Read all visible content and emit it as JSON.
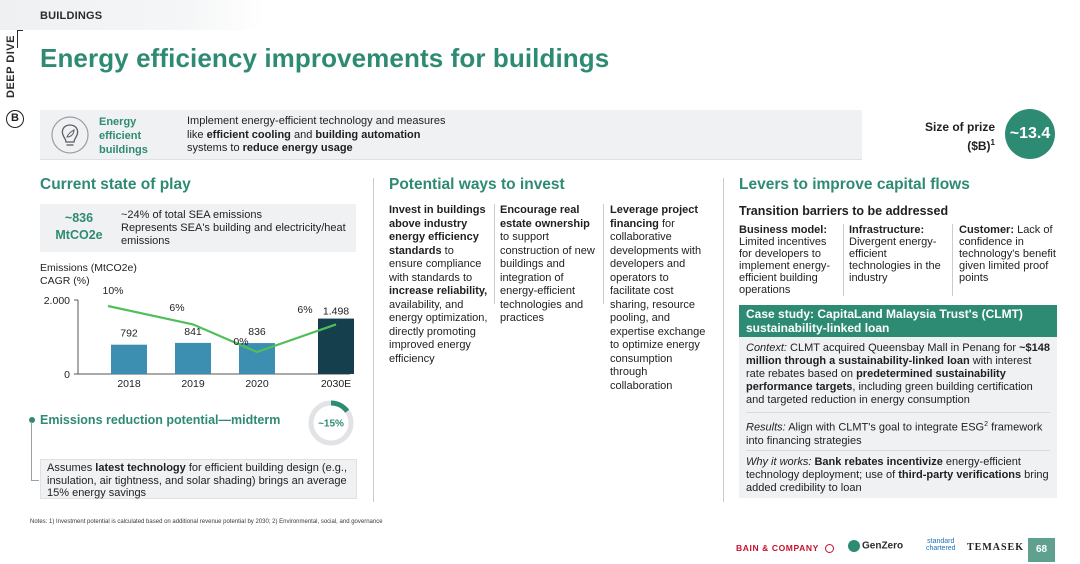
{
  "breadcrumb": "BUILDINGS",
  "side_tab": "DEEP DIVE",
  "side_badge": "B",
  "title": "Energy efficiency improvements for buildings",
  "header": {
    "icon": "bulb-leaf-icon",
    "name": [
      "Energy",
      "efficient",
      "buildings"
    ],
    "desc_parts": [
      "Implement energy-efficient technology and measures like ",
      "efficient cooling",
      " and ",
      "building automation",
      " systems to ",
      "reduce energy usage"
    ],
    "prize_label_1": "Size of prize",
    "prize_label_2": "($B)",
    "prize_sup": "1",
    "prize_value": "~13.4"
  },
  "state": {
    "title": "Current state of play",
    "stat_value_1": "~836",
    "stat_value_2": "MtCO2e",
    "stat_desc_1": "~24% of total SEA emissions",
    "stat_desc_2": "Represents SEA's building and electricity/heat emissions",
    "ylabel": "Emissions (MtCO2e)",
    "cagr_label": "CAGR (%)",
    "y_max_label": "2.000",
    "y_min_label": "0"
  },
  "chart_data": {
    "type": "bar",
    "categories": [
      "2018",
      "2019",
      "2020",
      "2030E"
    ],
    "values": [
      792,
      841,
      836,
      1498
    ],
    "value_labels": [
      "792",
      "841",
      "836",
      "1.498"
    ],
    "ylim": [
      0,
      2000
    ],
    "cagr_line": {
      "values": [
        10,
        6,
        0,
        6
      ],
      "labels": [
        "10%",
        "6%",
        "0%",
        "6%"
      ]
    }
  },
  "reduction": {
    "title": "Emissions reduction potential—midterm",
    "value": "~15%",
    "fraction": 0.15,
    "assume_1": "Assumes ",
    "assume_bold": "latest technology",
    "assume_2": " for efficient building design (e.g., insulation, air tightness, and solar shading) brings an average 15% energy savings"
  },
  "invest": {
    "title": "Potential ways to invest",
    "col1_bold": "Invest in buildings above industry energy efficiency standards",
    "col1_rest": " to ensure compliance with standards to ",
    "col1_bold2": "increase reliability,",
    "col1_rest2": " availability, and energy optimization, directly promoting improved energy efficiency",
    "col2_bold": "Encourage real estate ownership",
    "col2_rest": " to support construction of new buildings and integration of energy-efficient technologies and practices",
    "col3_bold": "Leverage project financing",
    "col3_rest": " for collaborative developments with developers and operators to facilitate cost sharing, resource pooling, and expertise exchange to optimize energy consumption through collaboration"
  },
  "levers": {
    "title": "Levers to improve capital flows",
    "barriers_title": "Transition barriers to be addressed",
    "b1_title": "Business model:",
    "b1_text": "Limited incentives for developers to implement energy-efficient building operations",
    "b2_title": "Infrastructure:",
    "b2_text": "Divergent energy-efficient technologies in the industry",
    "b3_title": "Customer:",
    "b3_text": " Lack of confidence in technology's benefit given limited proof points",
    "case_title": "Case study: CapitaLand Malaysia Trust's (CLMT) sustainability-linked loan",
    "context_label": "Context:",
    "context_1": " CLMT acquired Queensbay Mall in Penang for ",
    "context_bold1": "~$148 million through a sustainability-linked loan",
    "context_2": " with interest rate rebates based on ",
    "context_bold2": "predetermined sustainability performance targets",
    "context_3": ", including green building certification and targeted reduction in energy consumption",
    "results_label": "Results:",
    "results_text": " Align with CLMT's goal to integrate ESG",
    "results_sup": "2",
    "results_text2": " framework into financing strategies",
    "why_label": "Why it works:",
    "why_bold1": " Bank rebates incentivize",
    "why_1": " energy-efficient technology deployment; use of ",
    "why_bold2": "third-party verifications",
    "why_2": " bring added credibility to loan"
  },
  "notes": "Notes: 1) Investment potential is calculated based on additional revenue potential by 2030; 2) Environmental, social, and governance",
  "footer": {
    "bain": "BAIN & COMPANY",
    "genzero": "GenZero",
    "sc_1": "standard",
    "sc_2": "chartered",
    "temasek": "TEMASEK",
    "page": "68"
  },
  "colors": {
    "accent": "#2e8b73",
    "bar_historic": "#3c8fb0",
    "bar_forecast": "#163f4e",
    "cagr_line": "#4fbf5a"
  }
}
